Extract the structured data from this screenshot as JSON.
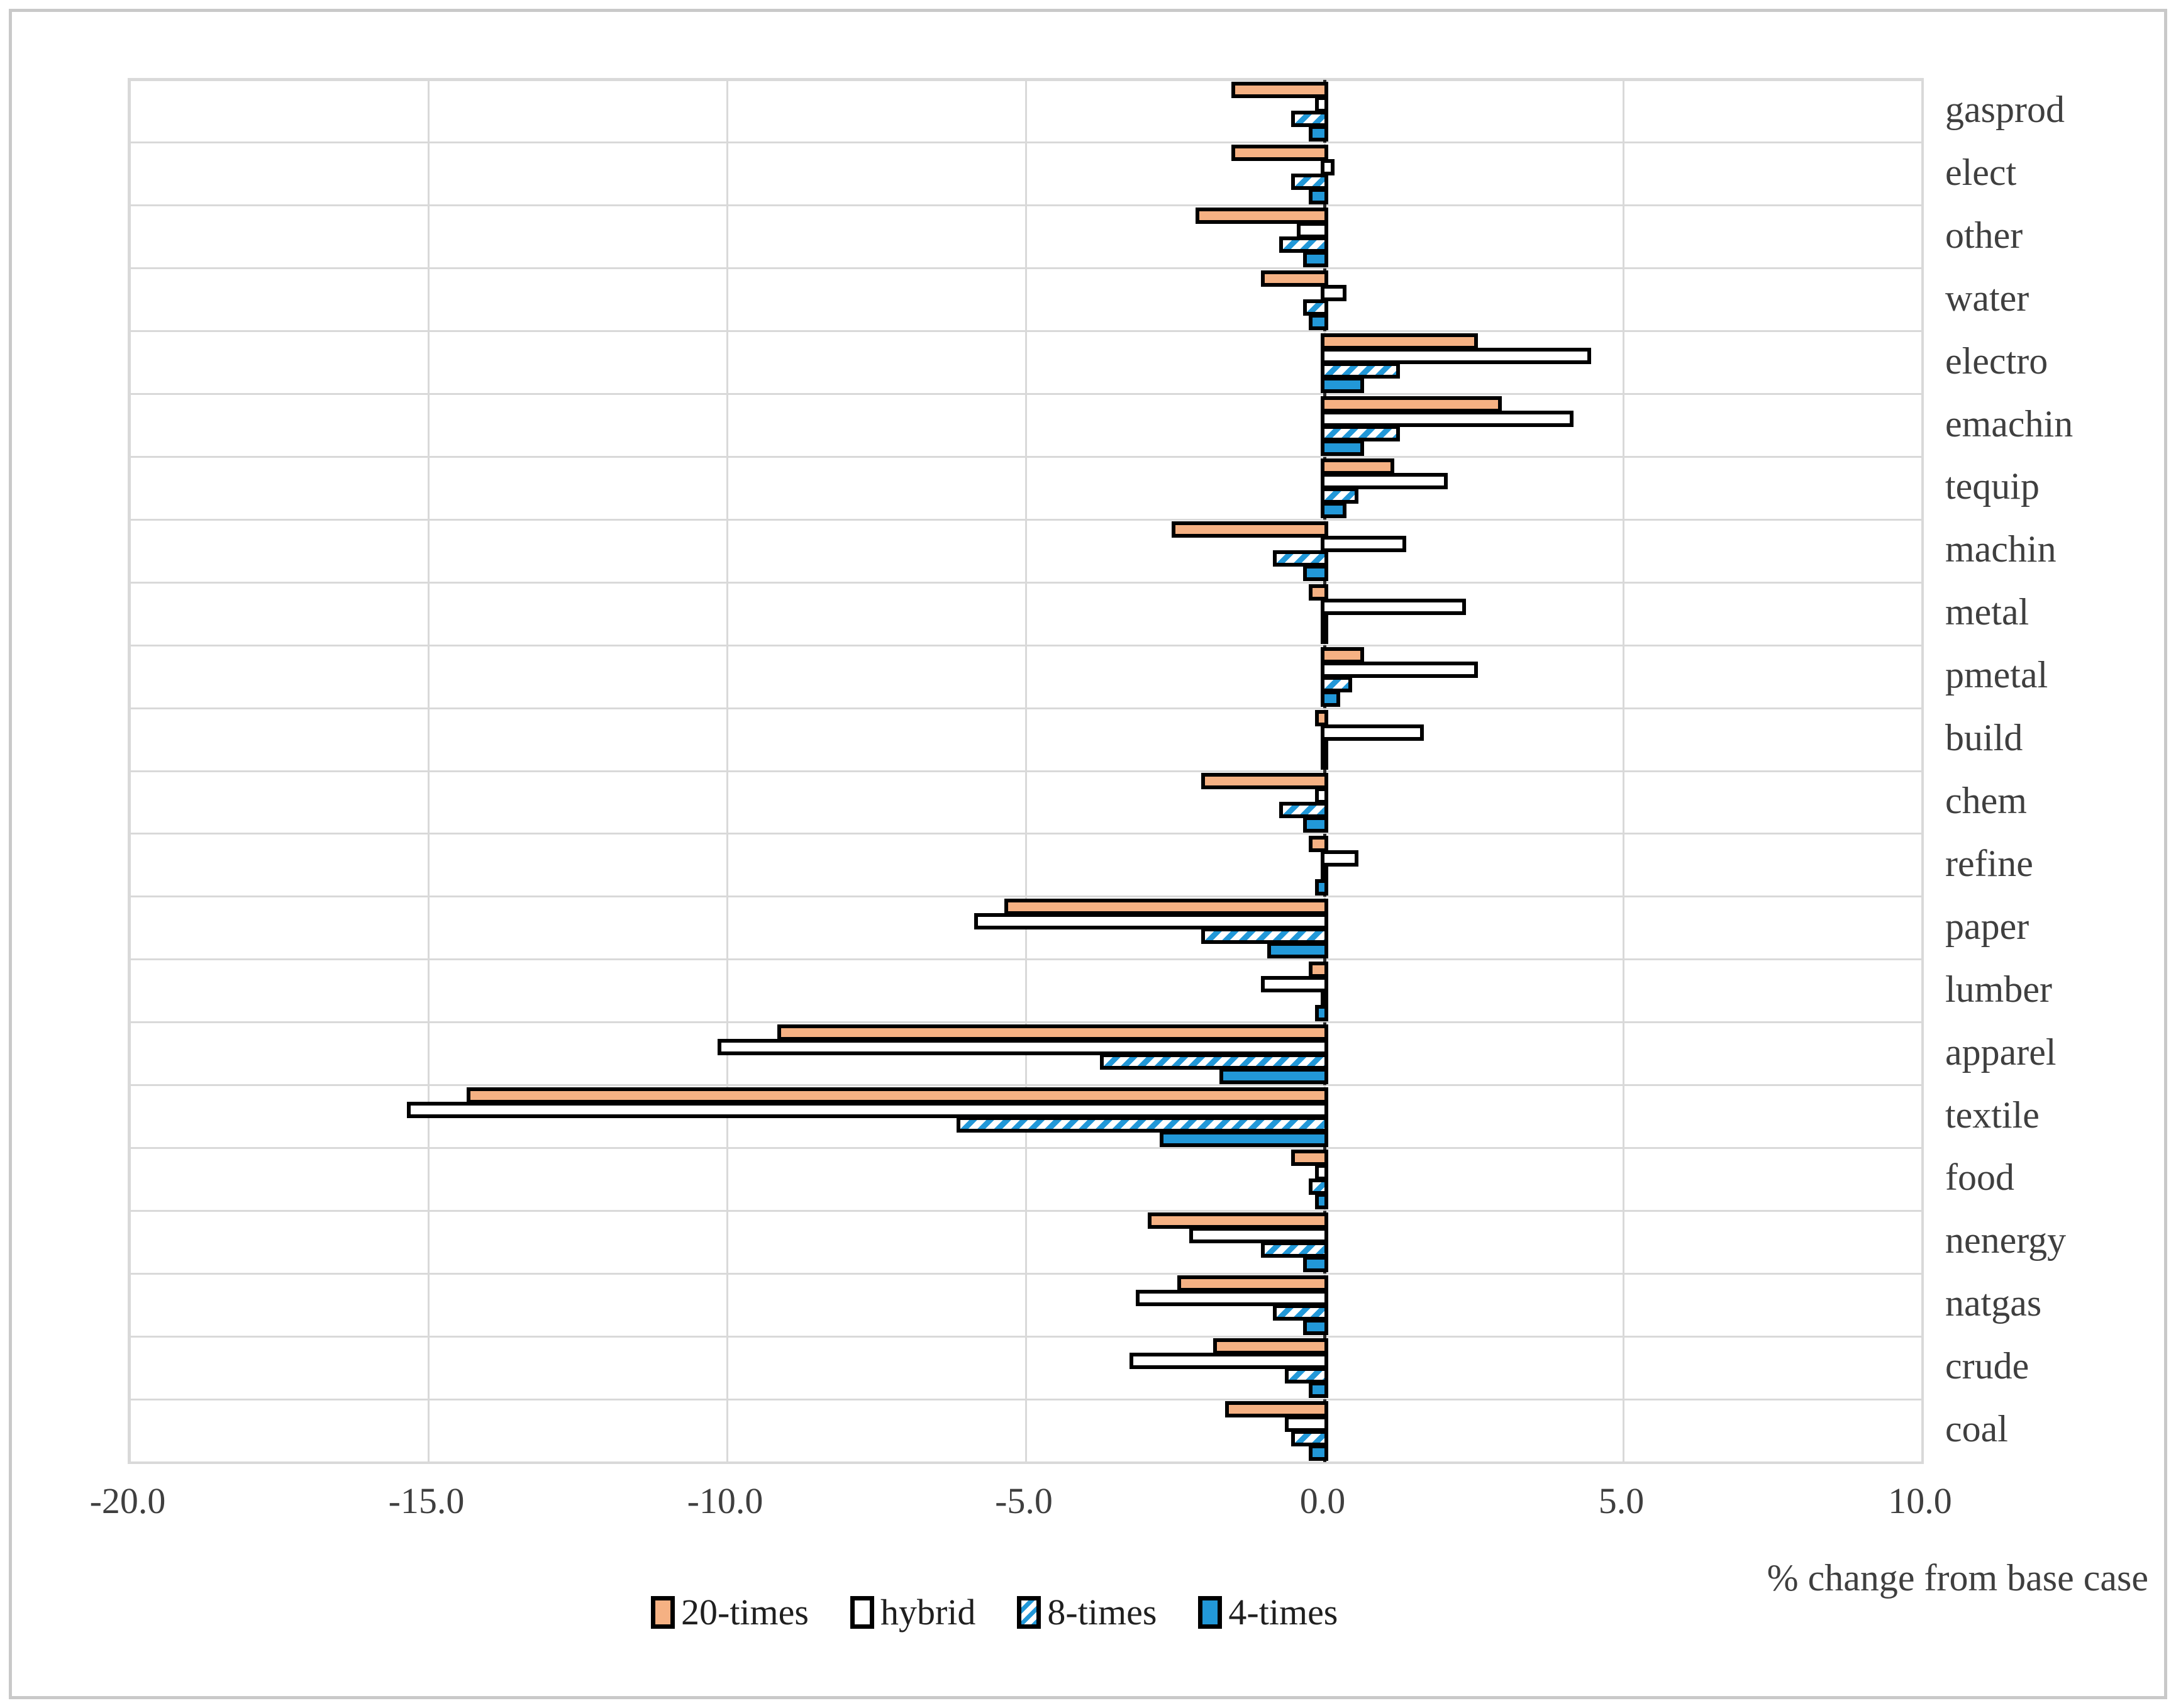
{
  "chart_data": {
    "type": "bar",
    "orientation": "horizontal",
    "title": "",
    "xlabel": "% change from base case",
    "ylabel": "",
    "xlim": [
      -20,
      10
    ],
    "xticks": [
      -20,
      -15,
      -10,
      -5,
      0,
      5,
      10
    ],
    "xtick_labels": [
      "-20.0",
      "-15.0",
      "-10.0",
      "-5.0",
      "0.0",
      "5.0",
      "10.0"
    ],
    "grid": true,
    "zero_line_style": "dashed",
    "legend_position": "bottom",
    "categories_top_to_bottom": [
      "gasprod",
      "elect",
      "other",
      "water",
      "electro",
      "emachin",
      "tequip",
      "machin",
      "metal",
      "pmetal",
      "build",
      "chem",
      "refine",
      "paper",
      "lumber",
      "apparel",
      "textile",
      "food",
      "nenergy",
      "natgas",
      "crude",
      "coal"
    ],
    "series": [
      {
        "name": "20-times",
        "pattern": "solid",
        "fill": "#F5B183",
        "border": "#000000",
        "values": [
          -1.5,
          -1.5,
          -2.1,
          -1.0,
          2.5,
          2.9,
          1.1,
          -2.5,
          -0.2,
          0.6,
          -0.1,
          -2.0,
          -0.2,
          -5.3,
          -0.2,
          -9.1,
          -14.3,
          -0.5,
          -2.9,
          -2.4,
          -1.8,
          -1.6
        ]
      },
      {
        "name": "hybrid",
        "pattern": "solid",
        "fill": "#FFFFFF",
        "border": "#000000",
        "values": [
          -0.1,
          0.1,
          -0.4,
          0.3,
          4.4,
          4.1,
          2.0,
          1.3,
          2.3,
          2.5,
          1.6,
          -0.1,
          0.5,
          -5.8,
          -1.0,
          -10.1,
          -15.3,
          -0.1,
          -2.2,
          -3.1,
          -3.2,
          -0.6
        ]
      },
      {
        "name": "8-times",
        "pattern": "hatch",
        "fill": "#2298D8",
        "hatch_background": "#FFFFFF",
        "border": "#000000",
        "values": [
          -0.5,
          -0.5,
          -0.7,
          -0.3,
          1.2,
          1.2,
          0.5,
          -0.8,
          0.0,
          0.4,
          0.0,
          -0.7,
          0.0,
          -2.0,
          0.0,
          -3.7,
          -6.1,
          -0.2,
          -1.0,
          -0.8,
          -0.6,
          -0.5
        ]
      },
      {
        "name": "4-times",
        "pattern": "solid",
        "fill": "#2298D8",
        "border": "#000000",
        "values": [
          -0.2,
          -0.2,
          -0.3,
          -0.2,
          0.6,
          0.6,
          0.3,
          -0.3,
          0.0,
          0.2,
          0.0,
          -0.3,
          -0.1,
          -0.9,
          -0.1,
          -1.7,
          -2.7,
          -0.1,
          -0.3,
          -0.3,
          -0.2,
          -0.2
        ]
      }
    ],
    "colors": {
      "gridline": "#D9D9D9",
      "frame_border": "#C9C9C9",
      "axis_text": "#3F3F3F",
      "bar_border": "#000000",
      "accent_orange": "#F5B183",
      "accent_blue": "#2298D8"
    }
  }
}
